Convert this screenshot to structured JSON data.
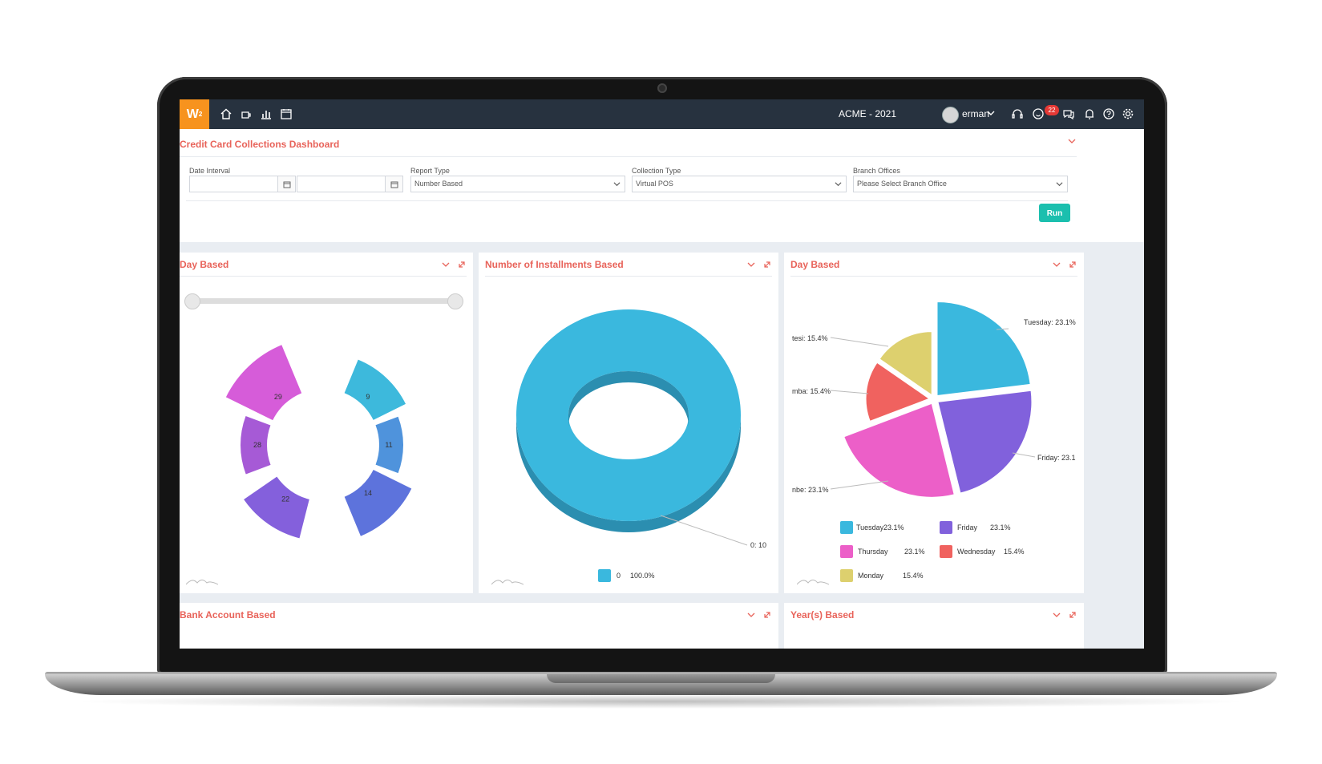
{
  "topbar": {
    "logo": "W",
    "logo_sup": "2",
    "company": "ACME - 2021",
    "user": "erman",
    "notif_count": "22"
  },
  "dashboard": {
    "title": "Credit Card Collections Dashboard",
    "date_label": "Date Interval",
    "report_label": "Report Type",
    "report_value": "Number Based",
    "collection_label": "Collection Type",
    "collection_value": "Virtual POS",
    "branch_label": "Branch Offices",
    "branch_placeholder": "Please Select Branch Office",
    "run_label": "Run"
  },
  "panels": {
    "day_based_1": "Day Based",
    "installments": "Number of Installments Based",
    "day_based_2": "Day Based",
    "bank_account": "Bank Account Based",
    "years": "Year(s) Based"
  },
  "chart_data": [
    {
      "type": "pie",
      "variant": "nightingale-rose",
      "categories": [
        "9",
        "11",
        "14",
        "22",
        "28",
        "29"
      ],
      "labels": [
        "9",
        "11",
        "14",
        "22",
        "28",
        "29"
      ],
      "colors": [
        "#3db9dc",
        "#4f93dc",
        "#5d73dc",
        "#8460dc",
        "#a65ad6",
        "#d65cd9"
      ]
    },
    {
      "type": "pie",
      "variant": "donut-3d",
      "categories": [
        "0"
      ],
      "values": [
        100.0
      ],
      "slice_label": "0: 10",
      "legend": [
        {
          "name": "0",
          "value": "100.0%"
        }
      ],
      "colors": [
        "#3ab8de"
      ]
    },
    {
      "type": "pie",
      "categories": [
        "Tuesday",
        "Friday",
        "Thursday",
        "Wednesday",
        "Monday"
      ],
      "values": [
        23.1,
        23.1,
        23.1,
        15.4,
        15.4
      ],
      "slice_labels": [
        "Tuesday: 23.1%",
        "Friday: 23.1",
        "nbe: 23.1%",
        "mba: 15.4%",
        "tesi: 15.4%"
      ],
      "legend": [
        {
          "name": "Tuesday",
          "value": "23.1%"
        },
        {
          "name": "Friday",
          "value": "23.1%"
        },
        {
          "name": "Thursday",
          "value": "23.1%"
        },
        {
          "name": "Wednesday",
          "value": "15.4%"
        },
        {
          "name": "Monday",
          "value": "15.4%"
        }
      ],
      "colors": [
        "#3ab8de",
        "#8161dc",
        "#ec5fc8",
        "#f0625f",
        "#ddd06e"
      ]
    }
  ]
}
